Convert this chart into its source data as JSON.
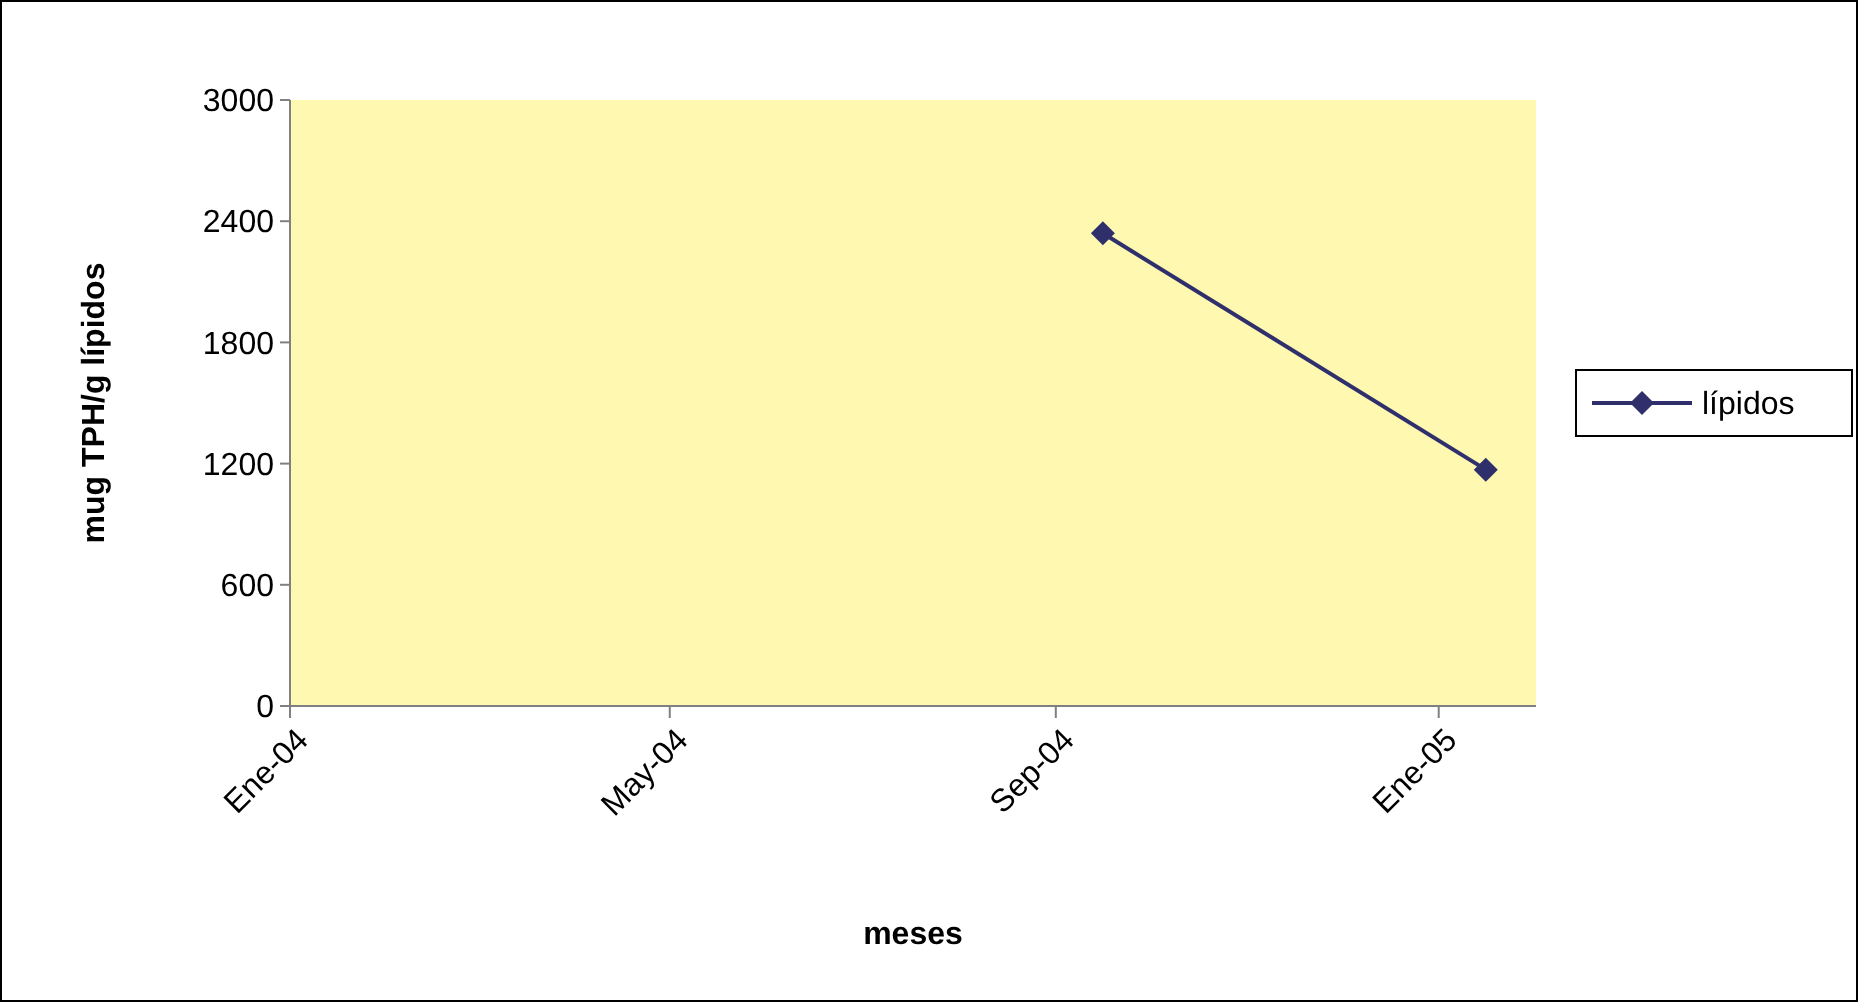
{
  "chart_data": {
    "type": "line",
    "xlabel": "meses",
    "ylabel": "mug TPH/g lípidos",
    "x": [
      "2004-09-16",
      "2005-01-16"
    ],
    "series": [
      {
        "name": "lípidos",
        "color": "#2e2f6b",
        "values": [
          2340,
          1170
        ]
      }
    ],
    "xlim": [
      "2004-01-01",
      "2005-02-01"
    ],
    "xticks": [
      {
        "value": "2004-01-01",
        "label": "Ene-04"
      },
      {
        "value": "2004-05-01",
        "label": "May-04"
      },
      {
        "value": "2004-09-01",
        "label": "Sep-04"
      },
      {
        "value": "2005-01-01",
        "label": "Ene-05"
      }
    ],
    "ylim": [
      0,
      3000
    ],
    "yticks": [
      0,
      600,
      1200,
      1800,
      2400,
      3000
    ],
    "grid": false,
    "legend": "right",
    "marker": "diamond",
    "line_style": "solid"
  }
}
